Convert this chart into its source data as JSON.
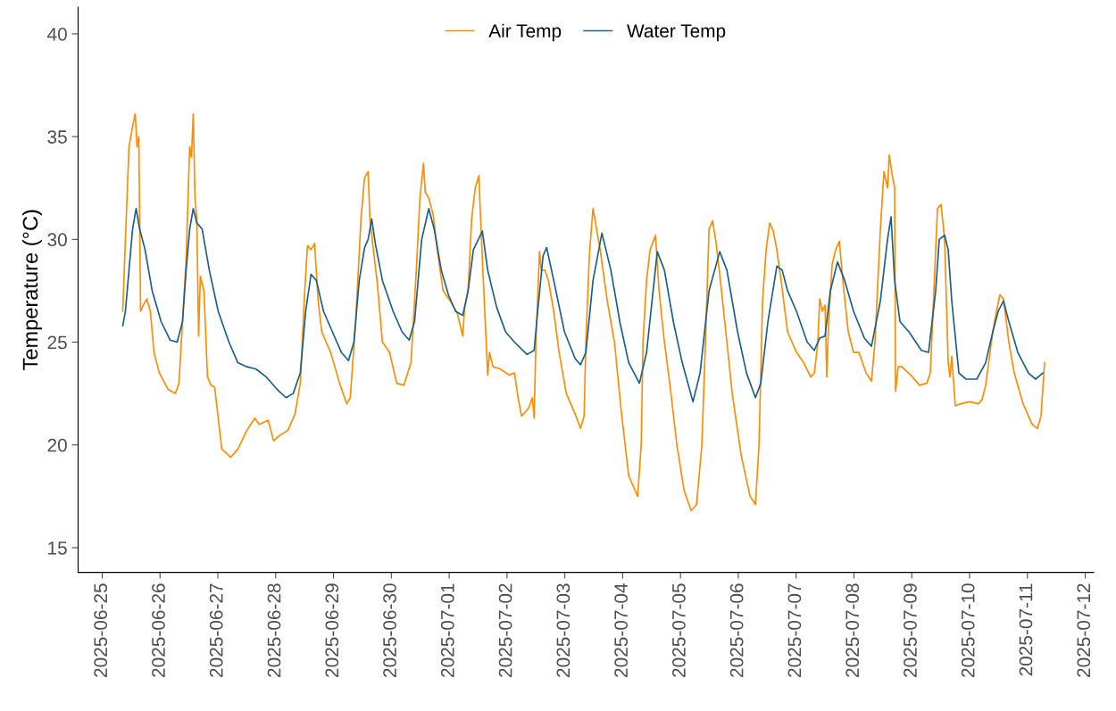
{
  "chart_data": {
    "type": "line",
    "ylabel": "Temperature (°C)",
    "xlim": [
      "2025-06-24T14:00",
      "2025-07-12T03:30"
    ],
    "ylim": [
      13.8,
      41.3
    ],
    "yticks": [
      15,
      20,
      25,
      30,
      35,
      40
    ],
    "xticks": [
      "2025-06-25",
      "2025-06-26",
      "2025-06-27",
      "2025-06-28",
      "2025-06-29",
      "2025-06-30",
      "2025-07-01",
      "2025-07-02",
      "2025-07-03",
      "2025-07-04",
      "2025-07-05",
      "2025-07-06",
      "2025-07-07",
      "2025-07-08",
      "2025-07-09",
      "2025-07-10",
      "2025-07-11",
      "2025-07-12"
    ],
    "grid": false,
    "legend": "top",
    "marker": "none",
    "line_style": "solid",
    "series": [
      {
        "name": "Air Temp",
        "color": "#ff8c00",
        "x": [
          "2025-06-25T08:31",
          "2025-06-25T09:38",
          "2025-06-25T11:07",
          "2025-06-25T12:36",
          "2025-06-25T13:42",
          "2025-06-25T14:27",
          "2025-06-25T15:11",
          "2025-06-25T15:56",
          "2025-06-25T17:02",
          "2025-06-25T18:31",
          "2025-06-25T20:00",
          "2025-06-25T21:29",
          "2025-06-25T23:42",
          "2025-06-26T03:24",
          "2025-06-26T06:22",
          "2025-06-26T07:51",
          "2025-06-26T09:20",
          "2025-06-26T10:49",
          "2025-06-26T12:18",
          "2025-06-26T13:02",
          "2025-06-26T13:47",
          "2025-06-26T14:31",
          "2025-06-26T15:16",
          "2025-06-26T16:00",
          "2025-06-26T16:44",
          "2025-06-26T18:13",
          "2025-06-26T19:42",
          "2025-06-26T21:11",
          "2025-06-26T22:40",
          "2025-06-27T01:38",
          "2025-06-27T05:20",
          "2025-06-27T08:18",
          "2025-06-27T12:00",
          "2025-06-27T15:20",
          "2025-06-27T17:11",
          "2025-06-27T20:53",
          "2025-06-27T23:07",
          "2025-06-28T02:04",
          "2025-06-28T05:02",
          "2025-06-28T08:00",
          "2025-06-28T10:13",
          "2025-06-28T12:04",
          "2025-06-28T13:11",
          "2025-06-28T14:40",
          "2025-06-28T16:09",
          "2025-06-28T17:38",
          "2025-06-28T19:07",
          "2025-06-28T22:49",
          "2025-06-29T02:31",
          "2025-06-29T05:29",
          "2025-06-29T06:58",
          "2025-06-29T09:11",
          "2025-06-29T11:24",
          "2025-06-29T12:53",
          "2025-06-29T14:22",
          "2025-06-29T15:07",
          "2025-06-29T16:13",
          "2025-06-29T18:04",
          "2025-06-29T20:18",
          "2025-06-29T23:16",
          "2025-06-30T02:13",
          "2025-06-30T05:11",
          "2025-06-30T08:09",
          "2025-06-30T10:22",
          "2025-06-30T11:51",
          "2025-06-30T13:20",
          "2025-06-30T14:04",
          "2025-06-30T15:33",
          "2025-06-30T17:24",
          "2025-06-30T19:16",
          "2025-06-30T21:29",
          "2025-07-01T00:27",
          "2025-07-01T03:24",
          "2025-07-01T05:38",
          "2025-07-01T06:22",
          "2025-07-01T07:51",
          "2025-07-01T09:20",
          "2025-07-01T10:49",
          "2025-07-01T12:18",
          "2025-07-01T13:47",
          "2025-07-01T16:00",
          "2025-07-01T16:44",
          "2025-07-01T18:13",
          "2025-07-01T21:11",
          "2025-07-02T00:53",
          "2025-07-02T03:07",
          "2025-07-02T04:36",
          "2025-07-02T06:04",
          "2025-07-02T09:02",
          "2025-07-02T10:31",
          "2025-07-02T11:16",
          "2025-07-02T12:00",
          "2025-07-02T13:29",
          "2025-07-02T14:13",
          "2025-07-02T15:42",
          "2025-07-02T17:11",
          "2025-07-02T19:24",
          "2025-07-02T21:38",
          "2025-07-03T00:36",
          "2025-07-03T04:18",
          "2025-07-03T06:31",
          "2025-07-03T08:00",
          "2025-07-03T08:44",
          "2025-07-03T10:13",
          "2025-07-03T11:42",
          "2025-07-03T13:11",
          "2025-07-03T14:40",
          "2025-07-03T17:38",
          "2025-07-03T20:36",
          "2025-07-03T23:33",
          "2025-07-04T02:31",
          "2025-07-04T06:13",
          "2025-07-04T07:42",
          "2025-07-04T08:27",
          "2025-07-04T09:56",
          "2025-07-04T11:24",
          "2025-07-04T13:38",
          "2025-07-04T15:07",
          "2025-07-04T17:20",
          "2025-07-04T19:33",
          "2025-07-04T22:31",
          "2025-07-05T01:29",
          "2025-07-05T04:27",
          "2025-07-05T06:40",
          "2025-07-05T08:53",
          "2025-07-05T10:22",
          "2025-07-05T11:51",
          "2025-07-05T13:20",
          "2025-07-05T14:49",
          "2025-07-05T17:02",
          "2025-07-05T19:16",
          "2025-07-05T21:29",
          "2025-07-06T01:11",
          "2025-07-06T04:53",
          "2025-07-06T07:07",
          "2025-07-06T08:36",
          "2025-07-06T10:04",
          "2025-07-06T11:33",
          "2025-07-06T13:02",
          "2025-07-06T14:31",
          "2025-07-06T16:00",
          "2025-07-06T18:13",
          "2025-07-06T20:27",
          "2025-07-07T00:09",
          "2025-07-07T03:07",
          "2025-07-07T06:04",
          "2025-07-07T07:33",
          "2025-07-07T09:02",
          "2025-07-07T09:47",
          "2025-07-07T10:53",
          "2025-07-07T12:00",
          "2025-07-07T12:44",
          "2025-07-07T13:29",
          "2025-07-07T14:58",
          "2025-07-07T16:27",
          "2025-07-07T17:56",
          "2025-07-07T19:24",
          "2025-07-07T21:38",
          "2025-07-07T23:51",
          "2025-07-08T02:04",
          "2025-07-08T05:02",
          "2025-07-08T07:16",
          "2025-07-08T08:44",
          "2025-07-08T10:58",
          "2025-07-08T12:27",
          "2025-07-08T13:56",
          "2025-07-08T14:40",
          "2025-07-08T15:47",
          "2025-07-08T16:53",
          "2025-07-08T17:16",
          "2025-07-08T18:22",
          "2025-07-08T19:51",
          "2025-07-08T23:33",
          "2025-07-09T03:16",
          "2025-07-09T06:13",
          "2025-07-09T07:42",
          "2025-07-09T09:11",
          "2025-07-09T10:40",
          "2025-07-09T12:09",
          "2025-07-09T13:38",
          "2025-07-09T15:07",
          "2025-07-09T15:51",
          "2025-07-09T16:36",
          "2025-07-09T18:04",
          "2025-07-09T20:18",
          "2025-07-10T00:00",
          "2025-07-10T03:42",
          "2025-07-10T05:11",
          "2025-07-10T06:40",
          "2025-07-10T09:38",
          "2025-07-10T11:07",
          "2025-07-10T12:36",
          "2025-07-10T14:04",
          "2025-07-10T16:18",
          "2025-07-10T18:31",
          "2025-07-10T22:13",
          "2025-07-11T01:56",
          "2025-07-11T04:09",
          "2025-07-11T05:38",
          "2025-07-11T07:07"
        ],
        "values": [
          26.5,
          30,
          34.5,
          35.5,
          36.1,
          34.5,
          35,
          26.5,
          26.8,
          27.1,
          26.5,
          24.5,
          23.5,
          22.7,
          22.5,
          23,
          26,
          29,
          34.5,
          34,
          36.1,
          32,
          31,
          25.3,
          28.2,
          27.5,
          23.3,
          22.9,
          22.8,
          19.8,
          19.4,
          19.8,
          20.7,
          21.3,
          21.0,
          21.2,
          20.2,
          20.5,
          20.7,
          21.5,
          23,
          27.5,
          29.7,
          29.5,
          29.8,
          27,
          25.5,
          24.5,
          23.0,
          22,
          22.3,
          26,
          31,
          33,
          33.3,
          31,
          29.8,
          28,
          25,
          24.5,
          23,
          22.9,
          24,
          28.5,
          32,
          33.7,
          32.3,
          32,
          31.2,
          29.3,
          27.5,
          27,
          26.4,
          25.3,
          26.6,
          27.5,
          31,
          32.5,
          33.1,
          29,
          23.4,
          24.5,
          23.8,
          23.7,
          23.4,
          23.5,
          22.3,
          21.4,
          21.8,
          22.3,
          21.3,
          25,
          29.4,
          28.5,
          28.5,
          28,
          26.5,
          24.5,
          22.5,
          21.5,
          20.8,
          21.4,
          25,
          29.3,
          31.5,
          30.5,
          29.5,
          27,
          25,
          21.5,
          18.5,
          17.5,
          20,
          25,
          28,
          29.5,
          30.2,
          27.5,
          25,
          23,
          20,
          17.8,
          16.8,
          17.1,
          20,
          25,
          30.5,
          30.9,
          29.8,
          27.5,
          25,
          22.5,
          19.5,
          17.5,
          17.1,
          20,
          27,
          29.5,
          30.8,
          30.4,
          29.5,
          27.6,
          25.5,
          24.5,
          24,
          23.3,
          23.5,
          25,
          27.1,
          26.5,
          26.8,
          23.3,
          26,
          28.8,
          29.5,
          29.9,
          28,
          25.5,
          24.5,
          24.5,
          23.5,
          23.1,
          25,
          30.5,
          33.3,
          32.5,
          34.1,
          33.2,
          32.5,
          22.6,
          23.8,
          23.8,
          23.4,
          22.9,
          23.0,
          23.5,
          27.5,
          31.5,
          31.7,
          30,
          24,
          23.3,
          24.3,
          21.9,
          22,
          22.1,
          22,
          22.2,
          22.9,
          25.5,
          26.5,
          27.3,
          27.1,
          25,
          23.5,
          22,
          21,
          20.8,
          21.4,
          24
        ]
      },
      {
        "name": "Water Temp",
        "color": "#1a5f8c",
        "x": [
          "2025-06-25T08:31",
          "2025-06-25T09:38",
          "2025-06-25T11:07",
          "2025-06-25T12:36",
          "2025-06-25T14:04",
          "2025-06-25T15:33",
          "2025-06-25T17:47",
          "2025-06-25T20:44",
          "2025-06-26T00:27",
          "2025-06-26T04:09",
          "2025-06-26T07:07",
          "2025-06-26T09:20",
          "2025-06-26T10:49",
          "2025-06-26T12:18",
          "2025-06-26T13:47",
          "2025-06-26T15:16",
          "2025-06-26T17:29",
          "2025-06-26T20:27",
          "2025-06-27T00:09",
          "2025-06-27T04:36",
          "2025-06-27T08:18",
          "2025-06-27T12:00",
          "2025-06-27T15:42",
          "2025-06-27T20:09",
          "2025-06-28T00:36",
          "2025-06-28T04:18",
          "2025-06-28T07:16",
          "2025-06-28T10:13",
          "2025-06-28T12:27",
          "2025-06-28T14:40",
          "2025-06-28T16:53",
          "2025-06-28T19:51",
          "2025-06-28T23:33",
          "2025-06-29T03:16",
          "2025-06-29T06:13",
          "2025-06-29T08:27",
          "2025-06-29T10:40",
          "2025-06-29T12:53",
          "2025-06-29T14:22",
          "2025-06-29T15:51",
          "2025-06-29T17:20",
          "2025-06-29T20:18",
          "2025-06-30T00:44",
          "2025-06-30T04:27",
          "2025-06-30T07:24",
          "2025-06-30T09:38",
          "2025-06-30T12:36",
          "2025-06-30T15:33",
          "2025-06-30T17:47",
          "2025-06-30T20:44",
          "2025-06-30T23:42",
          "2025-07-01T02:40",
          "2025-07-01T05:38",
          "2025-07-01T07:51",
          "2025-07-01T10:04",
          "2025-07-01T13:47",
          "2025-07-01T16:00",
          "2025-07-01T19:42",
          "2025-07-01T23:24",
          "2025-07-02T03:07",
          "2025-07-02T08:18",
          "2025-07-02T11:16",
          "2025-07-02T12:44",
          "2025-07-02T14:58",
          "2025-07-02T16:27",
          "2025-07-02T19:24",
          "2025-07-02T23:51",
          "2025-07-03T04:18",
          "2025-07-03T06:31",
          "2025-07-03T08:44",
          "2025-07-03T11:42",
          "2025-07-03T15:24",
          "2025-07-03T19:07",
          "2025-07-03T22:49",
          "2025-07-04T02:31",
          "2025-07-04T06:58",
          "2025-07-04T09:56",
          "2025-07-04T14:22",
          "2025-07-04T17:20",
          "2025-07-04T21:02",
          "2025-07-05T00:44",
          "2025-07-05T05:11",
          "2025-07-05T08:09",
          "2025-07-05T11:51",
          "2025-07-05T16:18",
          "2025-07-05T19:16",
          "2025-07-05T23:42",
          "2025-07-06T03:24",
          "2025-07-06T07:07",
          "2025-07-06T09:20",
          "2025-07-06T12:18",
          "2025-07-06T16:00",
          "2025-07-06T18:13",
          "2025-07-06T20:27",
          "2025-07-07T00:09",
          "2025-07-07T04:36",
          "2025-07-07T07:33",
          "2025-07-07T09:47",
          "2025-07-07T12:00",
          "2025-07-07T14:13",
          "2025-07-07T17:11",
          "2025-07-07T20:09",
          "2025-07-07T23:51",
          "2025-07-08T04:18",
          "2025-07-08T07:16",
          "2025-07-08T10:58",
          "2025-07-08T13:56",
          "2025-07-08T15:24",
          "2025-07-08T16:53",
          "2025-07-08T19:07",
          "2025-07-08T22:49",
          "2025-07-09T04:00",
          "2025-07-09T06:58",
          "2025-07-09T09:56",
          "2025-07-09T11:24",
          "2025-07-09T13:38",
          "2025-07-09T15:07",
          "2025-07-09T16:36",
          "2025-07-09T19:33",
          "2025-07-09T22:31",
          "2025-07-10T02:58",
          "2025-07-10T06:40",
          "2025-07-10T09:38",
          "2025-07-10T11:51",
          "2025-07-10T14:04",
          "2025-07-10T16:18",
          "2025-07-10T20:00",
          "2025-07-11T00:27",
          "2025-07-11T03:24",
          "2025-07-11T06:22"
        ],
        "values": [
          25.8,
          26.5,
          28.5,
          30.5,
          31.5,
          30.5,
          29.5,
          27.5,
          26,
          25.1,
          25,
          26,
          28.5,
          30.5,
          31.5,
          30.8,
          30.5,
          28.5,
          26.5,
          25,
          24,
          23.8,
          23.7,
          23.3,
          22.7,
          22.3,
          22.5,
          23.5,
          26.5,
          28.3,
          28,
          26.5,
          25.5,
          24.5,
          24.1,
          25,
          28,
          29.6,
          30,
          31,
          29.8,
          28,
          26.5,
          25.5,
          25.1,
          26,
          30,
          31.5,
          30.5,
          28.5,
          27.3,
          26.5,
          26.3,
          27.5,
          29.5,
          30.4,
          28.5,
          26.7,
          25.5,
          25,
          24.4,
          24.6,
          26.5,
          29.2,
          29.6,
          28,
          25.5,
          24.2,
          23.9,
          24.5,
          28,
          30.3,
          28.5,
          26,
          24,
          23,
          24.5,
          29.4,
          28.5,
          26,
          24,
          22.1,
          23.5,
          27.5,
          29.4,
          28.5,
          25.5,
          23.5,
          22.3,
          23,
          26,
          28.7,
          28.5,
          27.5,
          26.5,
          25,
          24.6,
          25.2,
          25.3,
          27.5,
          28.9,
          28,
          26.5,
          25.2,
          24.8,
          27,
          30,
          31.1,
          28,
          26,
          25.5,
          24.6,
          24.5,
          27.5,
          30,
          30.2,
          29.5,
          27,
          23.5,
          23.2,
          23.2,
          24,
          25.5,
          26.5,
          27,
          26,
          24.5,
          23.5,
          23.2,
          23.5
        ]
      }
    ]
  }
}
